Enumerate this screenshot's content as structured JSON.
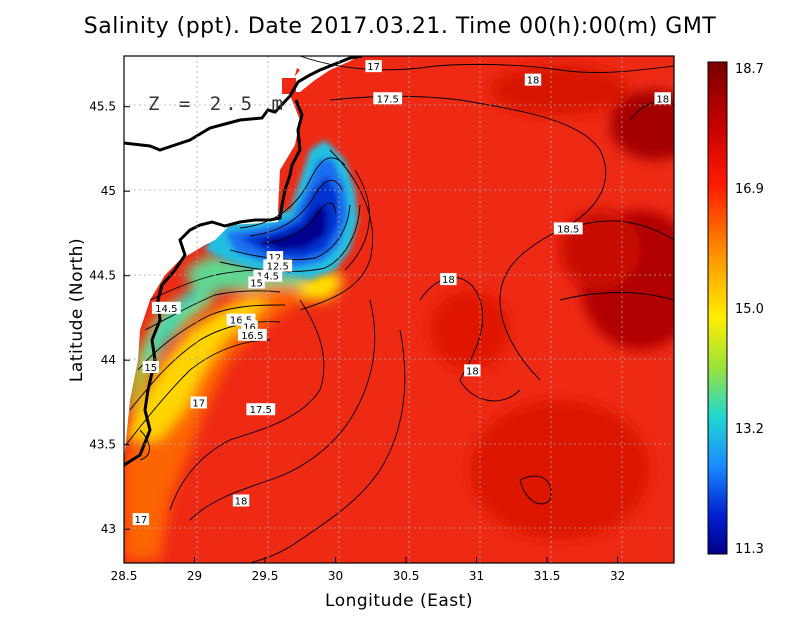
{
  "title": "Salinity (ppt). Date 2017.03.21. Time 00(h):00(m) GMT",
  "depth_label": "Z = 2.5 m",
  "x_axis": {
    "title": "Longitude (East)",
    "ticks": [
      "28.5",
      "29",
      "29.5",
      "30",
      "30.5",
      "31",
      "31.5",
      "32"
    ],
    "range": [
      28.5,
      32.4
    ]
  },
  "y_axis": {
    "title": "Latitude (North)",
    "ticks": [
      "43",
      "43.5",
      "44",
      "44.5",
      "45",
      "45.5"
    ],
    "range": [
      42.8,
      45.8
    ]
  },
  "colorbar": {
    "ticks": [
      "18.7",
      "16.9",
      "15.0",
      "13.2",
      "11.3"
    ],
    "min": 11.3,
    "max": 18.7
  },
  "colors": {
    "high": "#8b0000",
    "mid_high": "#e8201a",
    "mid": "#ffee00",
    "mid_low": "#22ddcc",
    "low": "#000088"
  },
  "contour_labels": [
    {
      "text": "17",
      "lon": 30.27,
      "lat": 45.74
    },
    {
      "text": "18",
      "lon": 31.4,
      "lat": 45.66
    },
    {
      "text": "17.5",
      "lon": 30.37,
      "lat": 45.55
    },
    {
      "text": "18",
      "lon": 32.32,
      "lat": 45.55
    },
    {
      "text": "18.5",
      "lon": 31.65,
      "lat": 44.78
    },
    {
      "text": "12",
      "lon": 29.57,
      "lat": 44.61
    },
    {
      "text": "12.5",
      "lon": 29.59,
      "lat": 44.56
    },
    {
      "text": "14.5",
      "lon": 29.52,
      "lat": 44.5
    },
    {
      "text": "15",
      "lon": 29.44,
      "lat": 44.46
    },
    {
      "text": "18",
      "lon": 30.8,
      "lat": 44.48
    },
    {
      "text": "14.5",
      "lon": 28.8,
      "lat": 44.31
    },
    {
      "text": "16.5",
      "lon": 29.33,
      "lat": 44.24
    },
    {
      "text": "16",
      "lon": 29.39,
      "lat": 44.2
    },
    {
      "text": "16.5",
      "lon": 29.41,
      "lat": 44.15
    },
    {
      "text": "15",
      "lon": 28.69,
      "lat": 43.96
    },
    {
      "text": "18",
      "lon": 30.97,
      "lat": 43.94
    },
    {
      "text": "17",
      "lon": 29.03,
      "lat": 43.75
    },
    {
      "text": "17.5",
      "lon": 29.47,
      "lat": 43.71
    },
    {
      "text": "18",
      "lon": 29.33,
      "lat": 43.17
    },
    {
      "text": "17",
      "lon": 28.62,
      "lat": 43.06
    }
  ]
}
